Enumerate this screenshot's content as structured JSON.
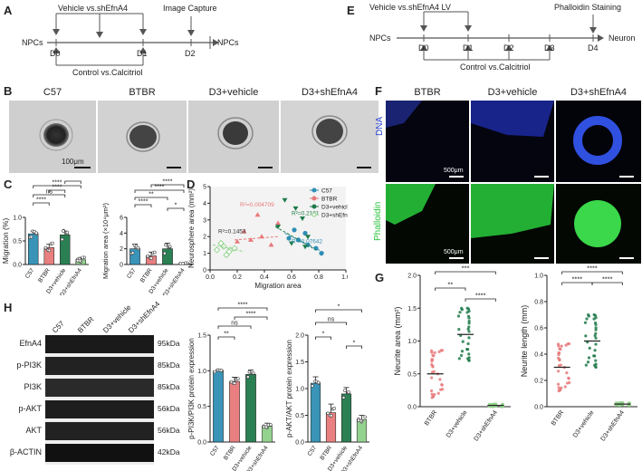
{
  "panels": {
    "a": "A",
    "b": "B",
    "c": "C",
    "d": "D",
    "e": "E",
    "f": "F",
    "g": "G",
    "h": "H"
  },
  "timeline_a": {
    "top": "Vehicle vs.shEfnA4",
    "capture": "Image Capture",
    "start": "NPCs",
    "end": "NPCs",
    "days": [
      "D0",
      "D1",
      "D2"
    ],
    "bottom": "Control vs.Calcitriol"
  },
  "timeline_e": {
    "top": "Vehicle vs.shEfnA4 LV",
    "stain": "Phalloidin Staining",
    "start": "NPCs",
    "end": "Neuron",
    "days": [
      "D0",
      "D1",
      "D2",
      "D3",
      "D4"
    ],
    "bottom": "Control vs.Calcitriol"
  },
  "groups4": [
    "C57",
    "BTBR",
    "D3+vehicle",
    "D3+shEfnA4"
  ],
  "groups3": [
    "BTBR",
    "D3+vehicle",
    "D3+shEfnA4"
  ],
  "scalebar_b": "100μm",
  "scalebar_f": "500μm",
  "fluor_rows": [
    "DNA",
    "Phalloidin"
  ],
  "colors": {
    "c57": "#2f8fb5",
    "btbr": "#e8797a",
    "d3veh": "#1f7a4a",
    "d3sh": "#8fd18a",
    "green": "#27c23a",
    "blue": "#2a46d6"
  },
  "sig": {
    "ns": "ns",
    "s1": "*",
    "s2": "**",
    "s3": "***",
    "s4": "****"
  },
  "chart_data": [
    {
      "type": "bar",
      "panel": "C-left",
      "categories": [
        "C57",
        "BTBR",
        "D3+vehicle",
        "D3+shEfnA4"
      ],
      "values": [
        0.65,
        0.36,
        0.63,
        0.1
      ],
      "ylabel": "Migration (%)",
      "ylim": [
        0,
        1.0
      ],
      "yticks": [
        "0.0",
        "0.5",
        "1.0"
      ]
    },
    {
      "type": "bar",
      "panel": "C-right",
      "categories": [
        "C57",
        "BTBR",
        "D3+vehicle",
        "D3+shEfnA4"
      ],
      "values": [
        2.0,
        1.1,
        2.0,
        0.1
      ],
      "ylabel": "Migration area (×10⁴μm²)",
      "ylim": [
        0,
        6
      ],
      "yticks": [
        "0",
        "2",
        "4",
        "6"
      ]
    },
    {
      "type": "scatter",
      "panel": "D",
      "xlabel": "Migration area",
      "ylabel": "Neurosphere area (mm²)",
      "xlim": [
        0,
        1.0
      ],
      "ylim": [
        0,
        5
      ],
      "xticks": [
        "0.0",
        "0.2",
        "0.4",
        "0.6",
        "0.8",
        "1.0"
      ],
      "yticks": [
        "0",
        "1",
        "2",
        "3",
        "4",
        "5"
      ],
      "legend": [
        "C57",
        "BTBR",
        "D3+vehicle",
        "D3+shEfnA4"
      ],
      "annotations": [
        "R²=0.004709",
        "R²=0.2181",
        "R²=0.1453",
        "R²=0.07642"
      ]
    },
    {
      "type": "scatter",
      "panel": "G-left",
      "categories": [
        "BTBR",
        "D3+vehicle",
        "D3+shEfnA4"
      ],
      "values": [
        0.5,
        1.1,
        0.02
      ],
      "ylabel": "Neurite area (mm²)",
      "ylim": [
        0,
        2.0
      ],
      "yticks": [
        "0.0",
        "0.5",
        "1.0",
        "1.5",
        "2.0"
      ]
    },
    {
      "type": "scatter",
      "panel": "G-right",
      "categories": [
        "BTBR",
        "D3+vehicle",
        "D3+shEfnA4"
      ],
      "values": [
        0.3,
        0.5,
        0.02
      ],
      "ylabel": "Neurite length (mm)",
      "ylim": [
        0,
        1.0
      ],
      "yticks": [
        "0.0",
        "0.2",
        "0.4",
        "0.6",
        "0.8",
        "1.0"
      ]
    },
    {
      "type": "bar",
      "panel": "H-middle",
      "categories": [
        "C57",
        "BTBR",
        "D3+vehicle",
        "D3+shEfnA4"
      ],
      "values": [
        1.0,
        0.85,
        0.95,
        0.22
      ],
      "ylabel": "p-PI3K/PI3K protein expression",
      "ylim": [
        0,
        1.5
      ],
      "yticks": [
        "0.0",
        "0.5",
        "1.0",
        "1.5"
      ]
    },
    {
      "type": "bar",
      "panel": "H-right",
      "categories": [
        "C57",
        "BTBR",
        "D3+vehicle",
        "D3+shEfnA4"
      ],
      "values": [
        1.1,
        0.55,
        0.9,
        0.42
      ],
      "ylabel": "p-AKT/AKT protein expression",
      "ylim": [
        0,
        2.0
      ],
      "yticks": [
        "0.0",
        "0.5",
        "1.0",
        "1.5",
        "2.0"
      ]
    }
  ],
  "blot": {
    "rows": [
      "EfnA4",
      "p-PI3K",
      "PI3K",
      "p-AKT",
      "AKT",
      "β-ACTIN"
    ],
    "kda": [
      "95kDa",
      "85kDa",
      "85kDa",
      "56kDa",
      "56kDa",
      "42kDa"
    ],
    "lanes": [
      "C57",
      "BTBR",
      "D3+vehicle",
      "D3+shEfnA4"
    ]
  }
}
